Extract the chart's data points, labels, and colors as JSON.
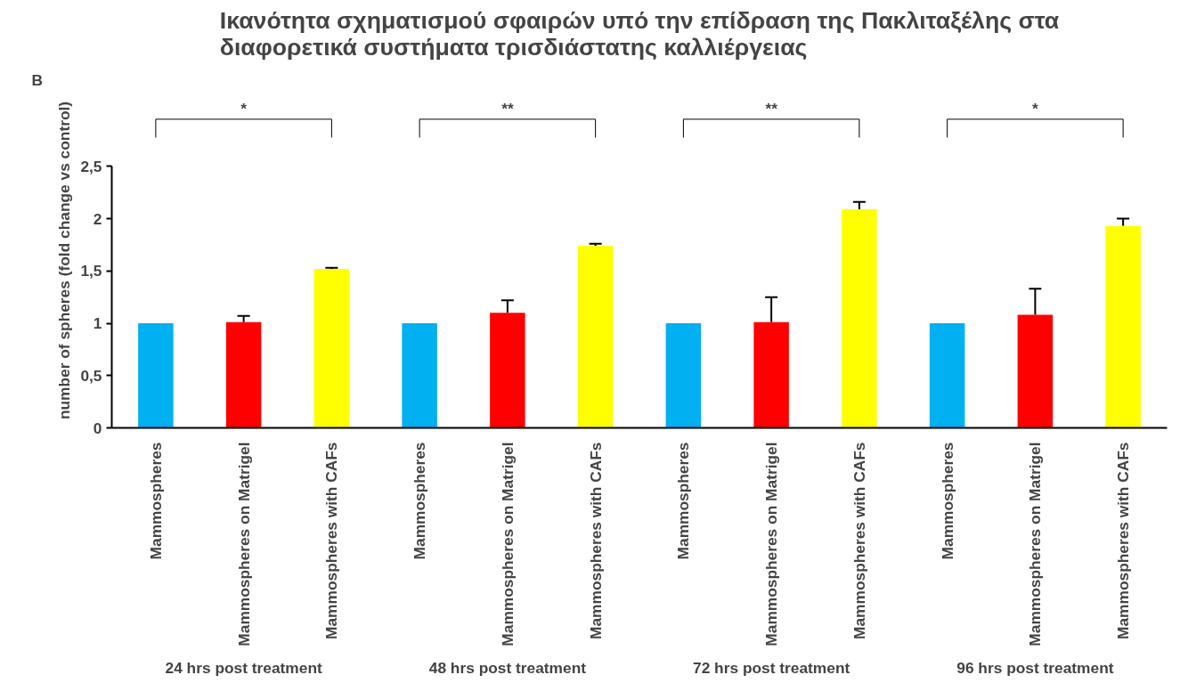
{
  "chart_data": {
    "type": "bar",
    "title": "Ικανότητα σχηματισμού σφαιρών υπό την επίδραση της Πακλιταξέλης στα\nδιαφορετικά συστήματα τρισδιάστατης καλλιέργειας",
    "ylabel": "number of spheres (fold change vs control)",
    "categories": [
      "Mammospheres",
      "Mammospheres on Matrigel",
      "Mammospheres with CAFs",
      "Mammospheres",
      "Mammospheres on Matrigel",
      "Mammospheres with CAFs",
      "Mammospheres",
      "Mammospheres on Matrigel",
      "Mammospheres with CAFs",
      "Mammospheres",
      "Mammospheres on Matrigel",
      "Mammospheres with CAFs"
    ],
    "values": [
      1.0,
      1.01,
      1.52,
      1.0,
      1.1,
      1.74,
      1.0,
      1.01,
      2.09,
      1.0,
      1.08,
      1.93
    ],
    "colors": [
      "#00b0f0",
      "#ff0000",
      "#ffff00",
      "#00b0f0",
      "#ff0000",
      "#ffff00",
      "#00b0f0",
      "#ff0000",
      "#ffff00",
      "#00b0f0",
      "#ff0000",
      "#ffff00"
    ],
    "errors": [
      null,
      [
        1.01,
        1.07
      ],
      [
        1.52,
        1.53
      ],
      null,
      [
        1.1,
        1.22
      ],
      [
        1.74,
        1.76
      ],
      null,
      [
        1.01,
        1.25
      ],
      [
        2.09,
        2.16
      ],
      null,
      [
        1.08,
        1.33
      ],
      [
        1.93,
        2.0
      ]
    ],
    "ylim": [
      0,
      2.5
    ],
    "yticks": [
      0,
      {
        "value": 0.5,
        "label": "0,5"
      },
      1,
      {
        "value": 1.5,
        "label": "1,5"
      },
      2,
      {
        "value": 2.5,
        "label": "2,5"
      }
    ],
    "grid": false,
    "annotations": [
      "B",
      "24 hrs post treatment",
      "48 hrs post treatment",
      "72 hrs post treatment",
      "96 hrs post treatment",
      "*",
      "**",
      "**",
      "*"
    ]
  }
}
